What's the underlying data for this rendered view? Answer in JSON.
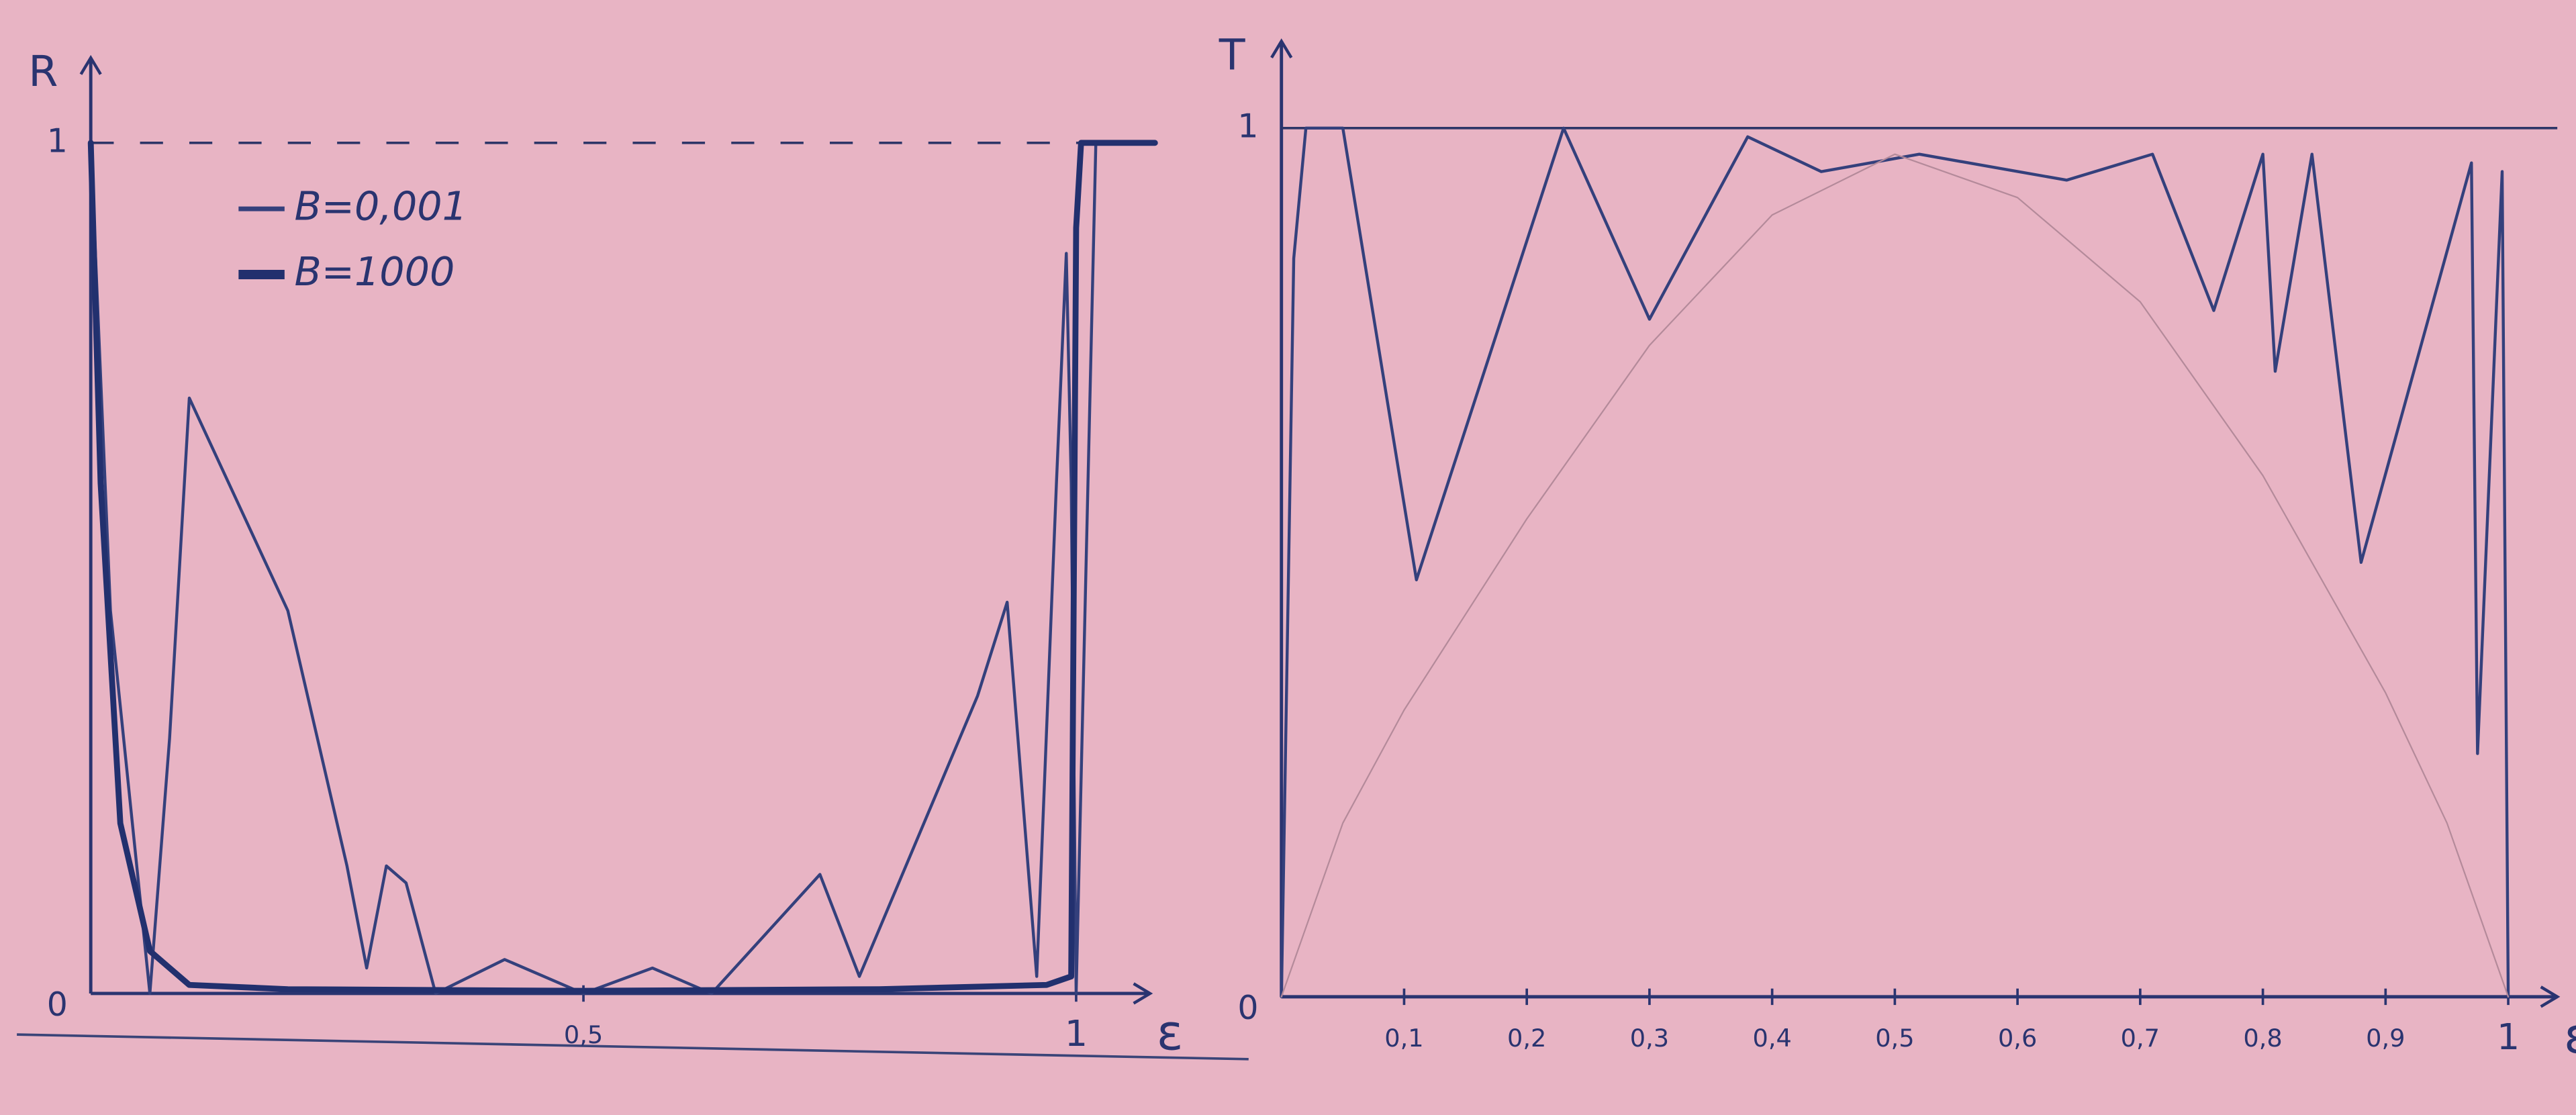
{
  "chart_data": [
    {
      "type": "line",
      "y_label": "R",
      "x_label": "ε",
      "grid": "dashed",
      "legend": "upper-left",
      "xlim": [
        0,
        1.075
      ],
      "ylim": [
        0,
        1.1
      ],
      "xticks": [
        0,
        {
          "value": 0.5,
          "label": "0,5"
        },
        1
      ],
      "yticks": [
        0,
        1
      ],
      "series": [
        {
          "name": "B=0,001",
          "color": "#34407c",
          "style": "thin",
          "x": [
            0,
            0.02,
            0.06,
            0.08,
            0.1,
            0.2,
            0.26,
            0.28,
            0.3,
            0.32,
            0.35,
            0.42,
            0.5,
            0.57,
            0.63,
            0.74,
            0.78,
            0.9,
            0.93,
            0.96,
            0.98,
            0.99,
            0.995,
            1.0,
            1.02
          ],
          "values": [
            1,
            0.45,
            0.0,
            0.3,
            0.7,
            0.45,
            0.15,
            0.03,
            0.15,
            0.13,
            0.0,
            0.04,
            0.0,
            0.03,
            0.0,
            0.14,
            0.02,
            0.35,
            0.46,
            0.02,
            0.6,
            0.87,
            0.6,
            0.0,
            1
          ]
        },
        {
          "name": "B=1000",
          "color": "#22306e",
          "style": "thick",
          "x": [
            0,
            0.01,
            0.03,
            0.06,
            0.1,
            0.2,
            0.5,
            0.8,
            0.97,
            0.995,
            1.0,
            1.005,
            1.08
          ],
          "values": [
            1,
            0.6,
            0.2,
            0.05,
            0.01,
            0.005,
            0.003,
            0.005,
            0.01,
            0.02,
            0.9,
            1,
            1
          ]
        }
      ]
    },
    {
      "type": "line",
      "y_label": "T",
      "x_label": "ε",
      "grid": "solid",
      "xlim": [
        0,
        1.04
      ],
      "ylim": [
        0,
        1.1
      ],
      "xticks": [
        0,
        {
          "value": 0.1,
          "label": "0,1"
        },
        {
          "value": 0.2,
          "label": "0,2"
        },
        {
          "value": 0.3,
          "label": "0,3"
        },
        {
          "value": 0.4,
          "label": "0,4"
        },
        {
          "value": 0.5,
          "label": "0,5"
        },
        {
          "value": 0.6,
          "label": "0,6"
        },
        {
          "value": 0.7,
          "label": "0,7"
        },
        {
          "value": 0.8,
          "label": "0,8"
        },
        {
          "value": 0.9,
          "label": "0,9"
        },
        1
      ],
      "yticks": [
        0,
        1
      ],
      "series": [
        {
          "color": "#34407c",
          "style": "thin",
          "x": [
            0,
            0.01,
            0.02,
            0.05,
            0.11,
            0.23,
            0.3,
            0.38,
            0.44,
            0.52,
            0.64,
            0.71,
            0.76,
            0.8,
            0.81,
            0.84,
            0.88,
            0.97,
            0.975,
            0.995,
            1.0
          ],
          "values": [
            0,
            0.85,
            1,
            1,
            0.48,
            1,
            0.78,
            0.99,
            0.95,
            0.97,
            0.94,
            0.97,
            0.79,
            0.97,
            0.72,
            0.97,
            0.5,
            0.96,
            0.28,
            0.95,
            0
          ]
        },
        {
          "color": "#b48a9a",
          "style": "hair",
          "x": [
            0,
            0.05,
            0.1,
            0.2,
            0.3,
            0.4,
            0.5,
            0.6,
            0.7,
            0.8,
            0.9,
            0.95,
            1.0
          ],
          "values": [
            0,
            0.2,
            0.33,
            0.55,
            0.75,
            0.9,
            0.97,
            0.92,
            0.8,
            0.6,
            0.35,
            0.2,
            0
          ]
        }
      ]
    }
  ]
}
